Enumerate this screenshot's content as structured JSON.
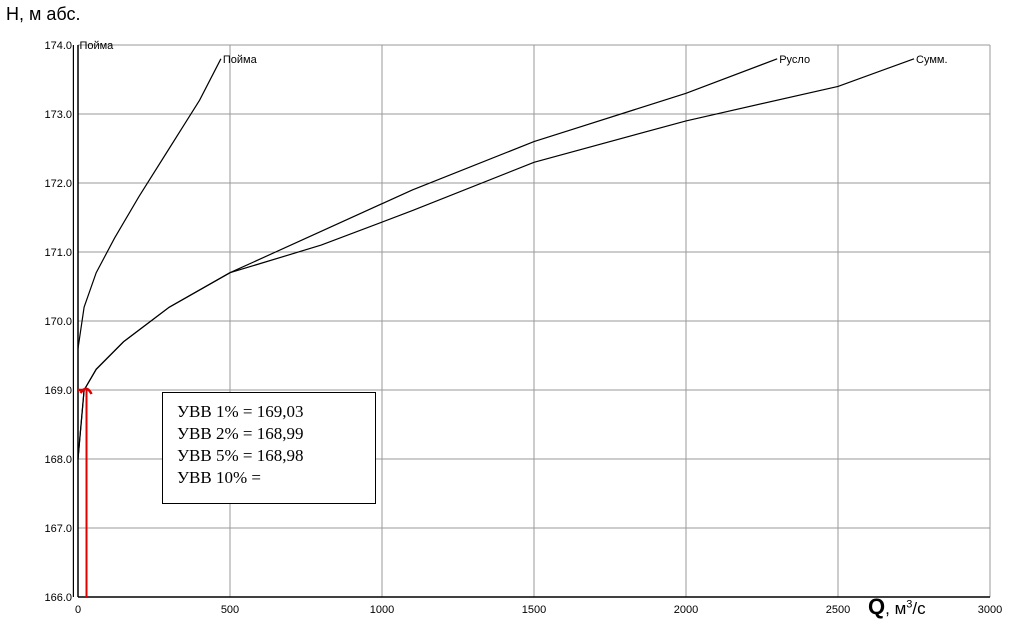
{
  "chart_data": {
    "type": "line",
    "ylabel": "Н, м абс.",
    "xlabel": {
      "symbol": "Q",
      "unit_prefix": ", м",
      "unit_exp": "3",
      "unit_suffix": "/с"
    },
    "xlim": [
      0,
      3000
    ],
    "ylim": [
      166.0,
      174.0
    ],
    "x_ticks": [
      "0",
      "500",
      "1000",
      "1500",
      "2000",
      "2500",
      "3000"
    ],
    "x_tick_values": [
      0,
      500,
      1000,
      1500,
      2000,
      2500,
      3000
    ],
    "y_ticks": [
      "174.0",
      "173.0",
      "172.0",
      "171.0",
      "170.0",
      "169.0",
      "168.0",
      "167.0",
      "166.0"
    ],
    "y_tick_values": [
      174,
      173,
      172,
      171,
      170,
      169,
      168,
      167,
      166
    ],
    "grid": true,
    "series": [
      {
        "name": "Пойма",
        "color": "#000000",
        "points": [
          [
            -15,
            166.0
          ],
          [
            -15,
            174.0
          ]
        ]
      },
      {
        "name": "Пойма",
        "color": "#000000",
        "points": [
          [
            0,
            169.6
          ],
          [
            20,
            170.2
          ],
          [
            60,
            170.7
          ],
          [
            120,
            171.2
          ],
          [
            200,
            171.8
          ],
          [
            300,
            172.5
          ],
          [
            400,
            173.2
          ],
          [
            470,
            173.8
          ]
        ]
      },
      {
        "name": "Русло",
        "color": "#000000",
        "points": [
          [
            0,
            168.0
          ],
          [
            20,
            169.0
          ],
          [
            60,
            169.3
          ],
          [
            150,
            169.7
          ],
          [
            300,
            170.2
          ],
          [
            500,
            170.7
          ],
          [
            800,
            171.3
          ],
          [
            1100,
            171.9
          ],
          [
            1500,
            172.6
          ],
          [
            2000,
            173.3
          ],
          [
            2300,
            173.8
          ]
        ]
      },
      {
        "name": "Сумм.",
        "color": "#000000",
        "points": [
          [
            0,
            168.0
          ],
          [
            20,
            169.0
          ],
          [
            60,
            169.3
          ],
          [
            150,
            169.7
          ],
          [
            300,
            170.2
          ],
          [
            500,
            170.7
          ],
          [
            800,
            171.1
          ],
          [
            1100,
            171.6
          ],
          [
            1500,
            172.3
          ],
          [
            2000,
            172.9
          ],
          [
            2500,
            173.4
          ],
          [
            2750,
            173.8
          ]
        ]
      }
    ],
    "markers": {
      "color": "#e00000",
      "vertical_x": 28,
      "level_y": 169.0
    },
    "annotations": [
      "УВВ 1% = 169,03",
      "УВВ 2% = 168,99",
      "УВВ 5% = 168,98",
      "УВВ 10% ="
    ]
  }
}
